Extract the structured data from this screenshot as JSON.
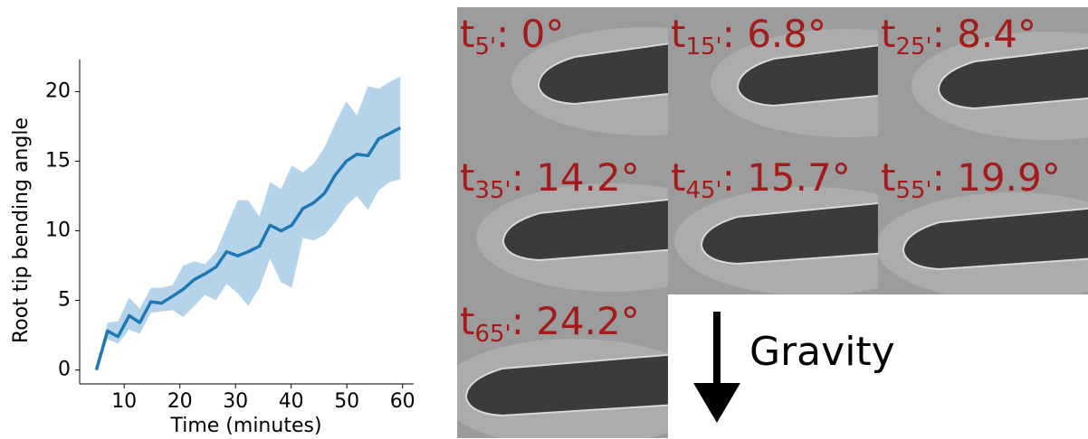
{
  "chart_data": {
    "type": "line",
    "x_label": "Time (minutes)",
    "y_label": "Root tip bending angle",
    "x": [
      5,
      7,
      8.9,
      10.9,
      12.8,
      14.8,
      16.7,
      18.7,
      20.6,
      22.6,
      24.5,
      26.5,
      28.4,
      30.4,
      32.3,
      34.3,
      36.2,
      38.2,
      40.1,
      42.1,
      44,
      46,
      47.9,
      49.9,
      51.8,
      53.8,
      55.7,
      57.7,
      59.6
    ],
    "series": [
      {
        "color": "#1f77b4",
        "band_color": "#b5d4ea",
        "values": [
          0,
          2.8,
          2.4,
          3.9,
          3.4,
          4.9,
          4.8,
          5.3,
          5.8,
          6.5,
          6.9,
          7.4,
          8.5,
          8.2,
          8.5,
          8.9,
          10.4,
          10.0,
          10.4,
          11.6,
          12.0,
          12.7,
          14.0,
          15.0,
          15.5,
          15.4,
          16.6,
          17.0,
          17.4
        ],
        "upper": [
          0,
          3.4,
          3.5,
          5.2,
          4.4,
          5.9,
          5.9,
          6.1,
          7.5,
          7.8,
          7.6,
          8.5,
          10.3,
          12.2,
          12.2,
          11.0,
          13.5,
          13.0,
          14.7,
          14.2,
          14.8,
          16.0,
          17.7,
          19.3,
          18.3,
          20.4,
          20.2,
          20.7,
          21.1
        ],
        "lower": [
          0,
          2.2,
          1.9,
          2.9,
          2.6,
          4.1,
          4.2,
          4.3,
          3.8,
          4.6,
          5.4,
          5.0,
          6.2,
          5.5,
          4.6,
          5.9,
          8.0,
          6.3,
          5.9,
          9.5,
          9.3,
          9.7,
          10.6,
          11.8,
          12.5,
          11.5,
          12.9,
          13.5,
          13.7
        ]
      }
    ],
    "xlim": [
      2,
      62
    ],
    "ylim": [
      -1,
      22.3
    ],
    "xticks": [
      10,
      20,
      30,
      40,
      50,
      60
    ],
    "yticks": [
      0,
      5,
      10,
      15,
      20
    ]
  },
  "panels": [
    {
      "prefix": "t",
      "subscript": "5'",
      "text": ": 0°"
    },
    {
      "prefix": "t",
      "subscript": "15'",
      "text": ": 6.8°"
    },
    {
      "prefix": "t",
      "subscript": "25'",
      "text": ": 8.4°"
    },
    {
      "prefix": "t",
      "subscript": "35'",
      "text": ": 14.2°"
    },
    {
      "prefix": "t",
      "subscript": "45'",
      "text": ": 15.7°"
    },
    {
      "prefix": "t",
      "subscript": "55'",
      "text": ": 19.9°"
    },
    {
      "prefix": "t",
      "subscript": "65'",
      "text": ": 24.2°"
    }
  ],
  "gravity_label": "Gravity"
}
